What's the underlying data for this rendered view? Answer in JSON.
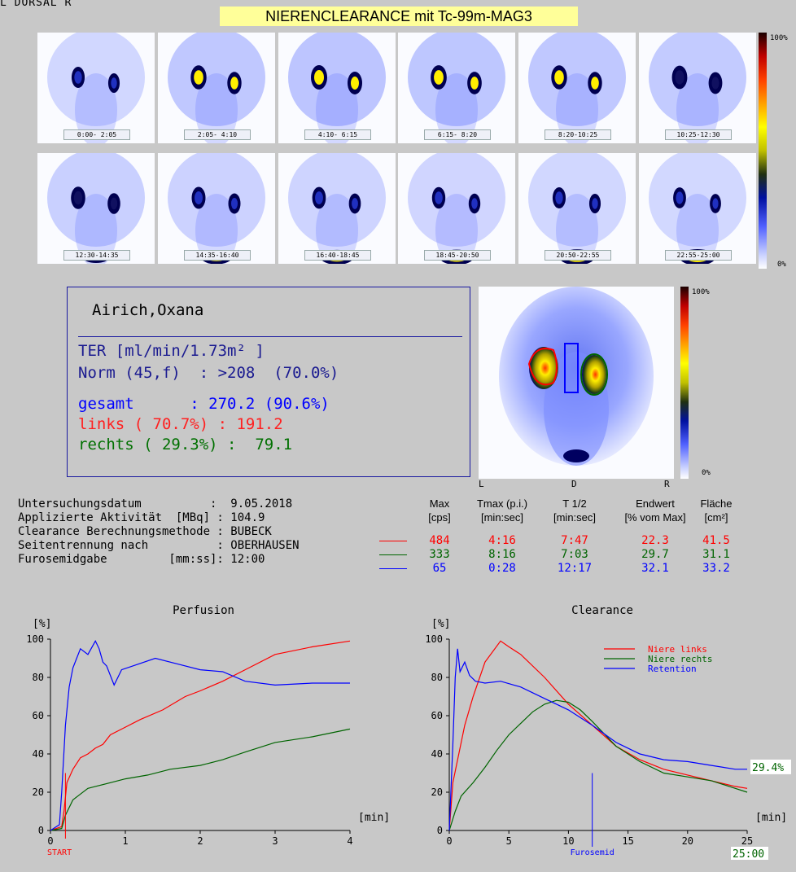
{
  "header": {
    "corner_label": "L  DORSAL  R",
    "title": "NIERENCLEARANCE mit Tc-99m-MAG3"
  },
  "frames": [
    {
      "label": "0:00- 2:05",
      "bright": 0.35,
      "bladder": 0
    },
    {
      "label": "2:05- 4:10",
      "bright": 0.9,
      "bladder": 0
    },
    {
      "label": "4:10- 6:15",
      "bright": 1.0,
      "bladder": 0
    },
    {
      "label": "6:15- 8:20",
      "bright": 0.95,
      "bladder": 0
    },
    {
      "label": "8:20-10:25",
      "bright": 0.9,
      "bladder": 0
    },
    {
      "label": "10:25-12:30",
      "bright": 0.8,
      "bladder": 0
    },
    {
      "label": "12:30-14:35",
      "bright": 0.6,
      "bladder": 0.5
    },
    {
      "label": "14:35-16:40",
      "bright": 0.5,
      "bladder": 0.75
    },
    {
      "label": "16:40-18:45",
      "bright": 0.45,
      "bladder": 0.85
    },
    {
      "label": "18:45-20:50",
      "bright": 0.4,
      "bladder": 0.9
    },
    {
      "label": "20:50-22:55",
      "bright": 0.35,
      "bladder": 0.95
    },
    {
      "label": "22:55-25:00",
      "bright": 0.3,
      "bladder": 1.0
    }
  ],
  "colorbar": {
    "top_label": "100%",
    "bottom_label": "0%"
  },
  "patient": {
    "name": "Airich,Oxana",
    "ter_label": "TER [ml/min/1.73m² ]",
    "norm_line": "Norm (45,f)  : >208  (70.0%)",
    "gesamt_line": "gesamt      : 270.2 (90.6%)",
    "links_line": "links ( 70.7%) : 191.2",
    "rechts_line": "rechts ( 29.3%) :  79.1"
  },
  "roi_image": {
    "left_label": "L",
    "mid_label": "D",
    "right_label": "R",
    "cbar_top": "100%",
    "cbar_bottom": "0%"
  },
  "study_info": {
    "date_label": "Untersuchungsdatum          :  9.05.2018",
    "activity_label": "Applizierte Aktivität  [MBq] : 104.9",
    "method_label": "Clearance Berechnungsmethode : BUBECK",
    "separation_label": "Seitentrennung nach          : OBERHAUSEN",
    "furosemide_label": "Furosemidgabe         [mm:ss]: 12:00"
  },
  "results_table": {
    "headers": [
      {
        "top": "Max",
        "bottom": "[cps]"
      },
      {
        "top": "Tmax (p.i.)",
        "bottom": "[min:sec]"
      },
      {
        "top": "T 1/2",
        "bottom": "[min:sec]"
      },
      {
        "top": "Endwert",
        "bottom": "[% vom Max]"
      },
      {
        "top": "Fläche",
        "bottom": "[cm²]"
      }
    ],
    "rows": [
      {
        "color": "#ff0000",
        "values": [
          "484",
          "4:16",
          "7:47",
          "22.3",
          "41.5"
        ]
      },
      {
        "color": "#006400",
        "values": [
          "333",
          "8:16",
          "7:03",
          "29.7",
          "31.1"
        ]
      },
      {
        "color": "#0000ff",
        "values": [
          "65",
          "0:28",
          "12:17",
          "32.1",
          "33.2"
        ]
      }
    ]
  },
  "colors": {
    "red": "#ff0000",
    "green": "#006400",
    "blue": "#0000ff",
    "frame_border": "#1a1aa0",
    "title_bg": "#ffff99"
  },
  "chart_data": [
    {
      "type": "line",
      "title": "Perfusion",
      "ylabel": "[%]",
      "xlabel": "[min]",
      "xlim": [
        0,
        4
      ],
      "ylim": [
        0,
        100
      ],
      "xticks": [
        "0",
        "1",
        "2",
        "3",
        "4"
      ],
      "yticks": [
        "0",
        "20",
        "40",
        "60",
        "80",
        "100"
      ],
      "start_label": "START",
      "series": [
        {
          "color": "#ff0000",
          "points": [
            [
              0,
              0
            ],
            [
              0.15,
              2
            ],
            [
              0.18,
              10
            ],
            [
              0.22,
              25
            ],
            [
              0.3,
              32
            ],
            [
              0.4,
              38
            ],
            [
              0.5,
              40
            ],
            [
              0.6,
              43
            ],
            [
              0.7,
              45
            ],
            [
              0.8,
              50
            ],
            [
              1.0,
              54
            ],
            [
              1.2,
              58
            ],
            [
              1.5,
              63
            ],
            [
              1.8,
              70
            ],
            [
              2.0,
              73
            ],
            [
              2.3,
              78
            ],
            [
              2.6,
              84
            ],
            [
              3.0,
              92
            ],
            [
              3.5,
              96
            ],
            [
              4.0,
              99
            ]
          ]
        },
        {
          "color": "#006400",
          "points": [
            [
              0,
              0
            ],
            [
              0.15,
              1
            ],
            [
              0.2,
              8
            ],
            [
              0.3,
              16
            ],
            [
              0.4,
              19
            ],
            [
              0.5,
              22
            ],
            [
              0.6,
              23
            ],
            [
              0.8,
              25
            ],
            [
              1.0,
              27
            ],
            [
              1.3,
              29
            ],
            [
              1.6,
              32
            ],
            [
              2.0,
              34
            ],
            [
              2.3,
              37
            ],
            [
              2.6,
              41
            ],
            [
              3.0,
              46
            ],
            [
              3.5,
              49
            ],
            [
              4.0,
              53
            ]
          ]
        },
        {
          "color": "#0000ff",
          "points": [
            [
              0,
              0
            ],
            [
              0.12,
              3
            ],
            [
              0.15,
              20
            ],
            [
              0.2,
              55
            ],
            [
              0.25,
              75
            ],
            [
              0.3,
              85
            ],
            [
              0.35,
              90
            ],
            [
              0.4,
              95
            ],
            [
              0.5,
              92
            ],
            [
              0.6,
              99
            ],
            [
              0.65,
              95
            ],
            [
              0.7,
              88
            ],
            [
              0.75,
              86
            ],
            [
              0.85,
              76
            ],
            [
              0.95,
              84
            ],
            [
              1.1,
              86
            ],
            [
              1.4,
              90
            ],
            [
              1.7,
              87
            ],
            [
              2.0,
              84
            ],
            [
              2.3,
              83
            ],
            [
              2.6,
              78
            ],
            [
              3.0,
              76
            ],
            [
              3.5,
              77
            ],
            [
              4.0,
              77
            ]
          ]
        }
      ]
    },
    {
      "type": "line",
      "title": "Clearance",
      "ylabel": "[%]",
      "xlabel": "[min]",
      "xlim": [
        0,
        25
      ],
      "ylim": [
        0,
        100
      ],
      "xticks": [
        "0",
        "5",
        "10",
        "15",
        "20",
        "25"
      ],
      "yticks": [
        "0",
        "20",
        "40",
        "60",
        "80",
        "100"
      ],
      "legend": [
        {
          "name": "Niere links",
          "color": "#ff0000"
        },
        {
          "name": "Niere rechts",
          "color": "#006400"
        },
        {
          "name": "Retention",
          "color": "#0000ff"
        }
      ],
      "furosemide_marker": {
        "x": 12,
        "label": "Furosemid"
      },
      "end_value_label": "29.4%",
      "end_time_label": "25:00",
      "series": [
        {
          "color": "#ff0000",
          "points": [
            [
              0,
              0
            ],
            [
              0.3,
              25
            ],
            [
              0.8,
              40
            ],
            [
              1.3,
              55
            ],
            [
              2,
              70
            ],
            [
              3,
              88
            ],
            [
              4.3,
              99
            ],
            [
              5,
              96
            ],
            [
              6,
              92
            ],
            [
              8,
              80
            ],
            [
              10,
              66
            ],
            [
              12,
              55
            ],
            [
              14,
              44
            ],
            [
              16,
              37
            ],
            [
              18,
              32
            ],
            [
              20,
              29
            ],
            [
              22,
              26
            ],
            [
              24,
              23
            ],
            [
              25,
              22
            ]
          ]
        },
        {
          "color": "#006400",
          "points": [
            [
              0,
              0
            ],
            [
              0.5,
              10
            ],
            [
              1,
              18
            ],
            [
              2,
              25
            ],
            [
              3,
              33
            ],
            [
              4,
              42
            ],
            [
              5,
              50
            ],
            [
              6,
              56
            ],
            [
              7,
              62
            ],
            [
              8,
              66
            ],
            [
              9,
              68
            ],
            [
              10,
              67
            ],
            [
              11,
              63
            ],
            [
              12,
              57
            ],
            [
              14,
              44
            ],
            [
              16,
              36
            ],
            [
              18,
              30
            ],
            [
              20,
              28
            ],
            [
              22,
              26
            ],
            [
              24,
              22
            ],
            [
              25,
              20
            ]
          ]
        },
        {
          "color": "#0000ff",
          "points": [
            [
              0,
              0
            ],
            [
              0.3,
              45
            ],
            [
              0.5,
              80
            ],
            [
              0.7,
              95
            ],
            [
              0.9,
              83
            ],
            [
              1.3,
              88
            ],
            [
              1.7,
              81
            ],
            [
              2.2,
              78
            ],
            [
              3,
              77
            ],
            [
              4.3,
              78
            ],
            [
              6,
              75
            ],
            [
              8,
              69
            ],
            [
              10,
              63
            ],
            [
              12,
              55
            ],
            [
              14,
              46
            ],
            [
              16,
              40
            ],
            [
              18,
              37
            ],
            [
              20,
              36
            ],
            [
              22,
              34
            ],
            [
              24,
              32
            ],
            [
              25,
              32
            ]
          ]
        }
      ]
    }
  ]
}
